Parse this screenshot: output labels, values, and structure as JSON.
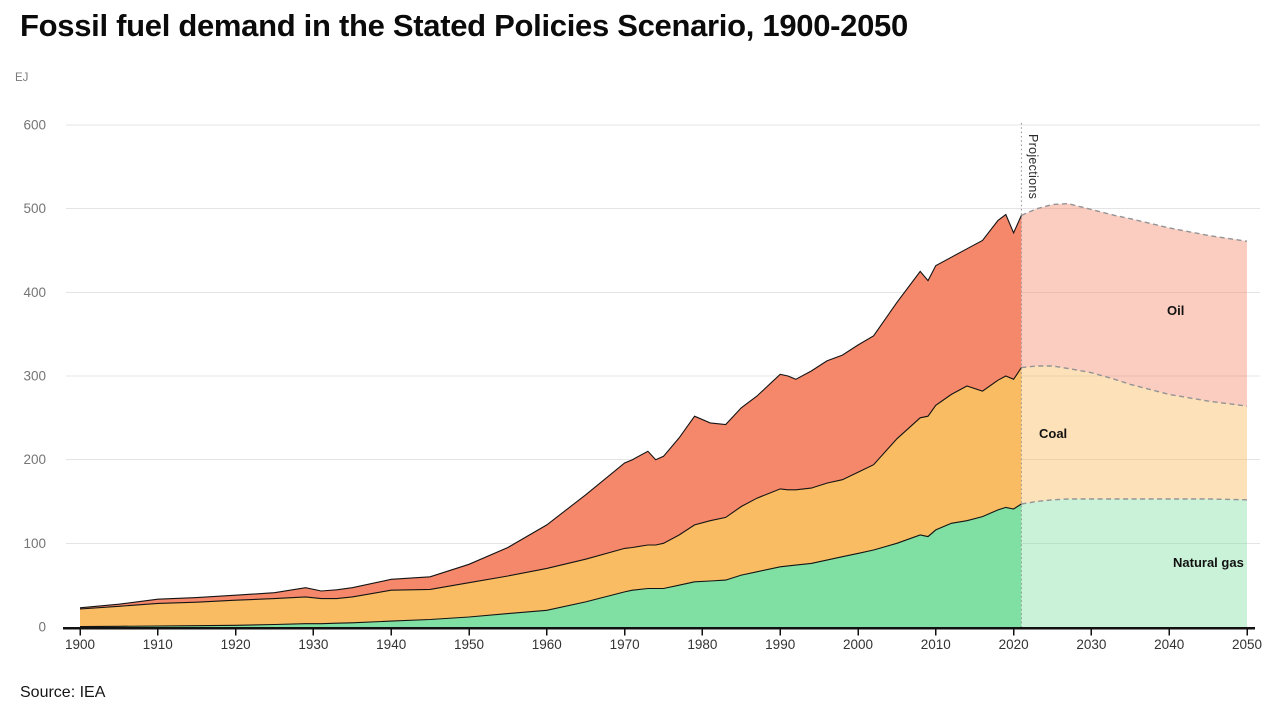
{
  "title": "Fossil fuel demand in the Stated Policies Scenario, 1900-2050",
  "unit_label": "EJ",
  "source": "Source: IEA",
  "projection_label": "Projections",
  "chart_data": {
    "type": "area",
    "stacked": true,
    "title": "Fossil fuel demand in the Stated Policies Scenario, 1900-2050",
    "ylabel": "EJ",
    "xlim": [
      1900,
      2050
    ],
    "ylim": [
      0,
      600
    ],
    "grid": "horizontal",
    "legend_position": "inline-annotations",
    "y_ticks": [
      0,
      100,
      200,
      300,
      400,
      500,
      600
    ],
    "x_ticks": [
      1900,
      1910,
      1920,
      1930,
      1940,
      1950,
      1960,
      1970,
      1980,
      1990,
      2000,
      2010,
      2020,
      2030,
      2040,
      2050
    ],
    "projection_start": 2021,
    "historical_years": [
      1900,
      1905,
      1910,
      1915,
      1920,
      1925,
      1929,
      1931,
      1933,
      1935,
      1940,
      1945,
      1950,
      1955,
      1960,
      1965,
      1970,
      1971,
      1973,
      1974,
      1975,
      1977,
      1979,
      1981,
      1983,
      1985,
      1987,
      1990,
      1991,
      1992,
      1994,
      1996,
      1998,
      2000,
      2002,
      2005,
      2008,
      2009,
      2010,
      2012,
      2014,
      2016,
      2018,
      2019,
      2020,
      2021
    ],
    "projection_years": [
      2021,
      2023,
      2025,
      2027,
      2030,
      2033,
      2035,
      2040,
      2045,
      2050
    ],
    "series": [
      {
        "name": "Natural gas",
        "color": "#80E0A3",
        "projection_fill": "rgba(128,224,163,0.42)",
        "historical": [
          0.5,
          0.8,
          1.2,
          1.6,
          2,
          3,
          4,
          4,
          4.5,
          5,
          7,
          9,
          12,
          16,
          20,
          30,
          42,
          44,
          46,
          46,
          46,
          50,
          54,
          55,
          56,
          62,
          66,
          72,
          73,
          74,
          76,
          80,
          84,
          88,
          92,
          100,
          110,
          108,
          116,
          124,
          127,
          132,
          140,
          143,
          141,
          147
        ],
        "projection": [
          147,
          150,
          152,
          153,
          153,
          153,
          153,
          153,
          153,
          152
        ]
      },
      {
        "name": "Coal",
        "color": "#F9BC63",
        "projection_fill": "rgba(249,188,99,0.45)",
        "historical": [
          21,
          24,
          27,
          28,
          30,
          31,
          32,
          30,
          29.5,
          31,
          37,
          36,
          41,
          45,
          50,
          51,
          52,
          51,
          52,
          52,
          54,
          60,
          68,
          72,
          75,
          82,
          88,
          93,
          91,
          90,
          90,
          92,
          92,
          97,
          102,
          125,
          140,
          144,
          149,
          154,
          161,
          150,
          155,
          157,
          155,
          163
        ],
        "projection": [
          163,
          162,
          160,
          156,
          151,
          143,
          137,
          125,
          117,
          112
        ]
      },
      {
        "name": "Oil",
        "color": "#F5876B",
        "projection_fill": "rgba(245,135,107,0.42)",
        "historical": [
          1.5,
          2.5,
          5,
          5.5,
          6,
          7,
          11,
          9,
          10.5,
          11,
          13,
          15,
          22,
          34,
          52,
          77,
          102,
          105,
          112,
          102,
          104,
          116,
          130,
          117,
          111,
          118,
          122,
          137,
          136,
          132,
          140,
          146,
          149,
          152,
          154,
          163,
          175,
          162,
          167,
          164,
          164,
          180,
          191,
          193,
          175,
          182
        ],
        "projection": [
          182,
          188,
          193,
          197,
          195,
          196,
          198,
          199,
          198,
          197
        ]
      }
    ]
  }
}
